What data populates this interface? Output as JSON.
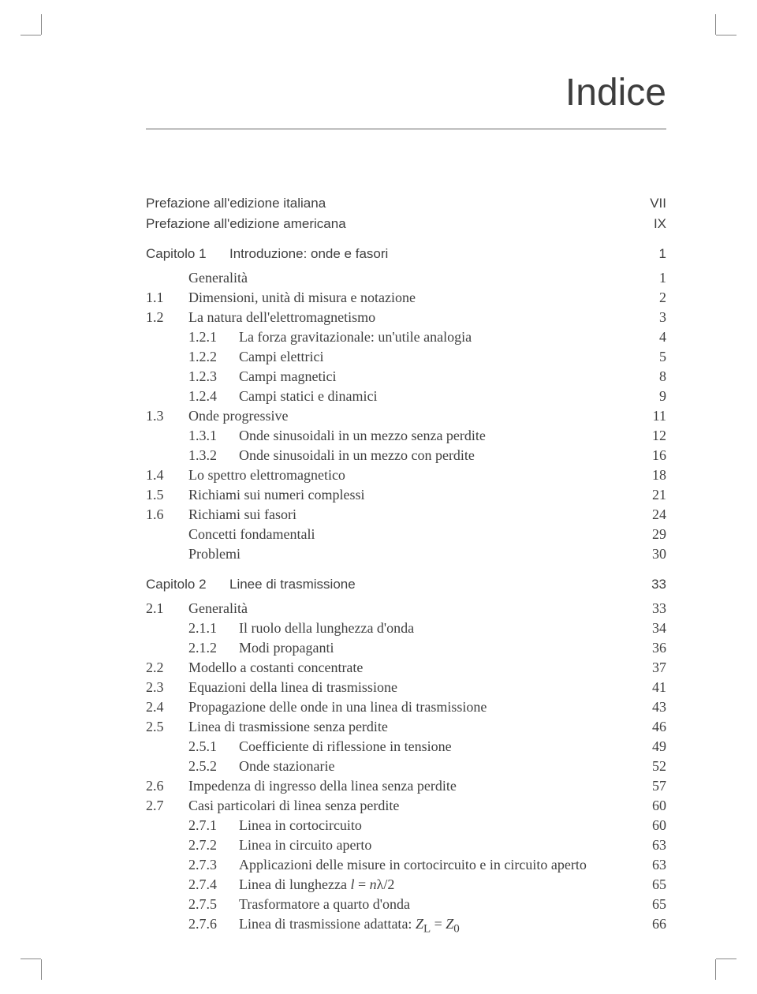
{
  "colors": {
    "text": "#3f3f3f",
    "rule": "#666666",
    "background": "#ffffff",
    "crop": "#888888"
  },
  "typography": {
    "body_family": "Times New Roman",
    "sans_family": "Helvetica Neue",
    "heading_size_pt": 48,
    "heading_weight": 300,
    "body_size_pt": 18,
    "sans_size_pt": 17
  },
  "heading": "Indice",
  "frontmatter": [
    {
      "title": "Prefazione all'edizione italiana",
      "page": "VII"
    },
    {
      "title": "Prefazione all'edizione americana",
      "page": "IX"
    }
  ],
  "chapters": [
    {
      "label": "Capitolo 1",
      "title": "Introduzione: onde e fasori",
      "page": "1",
      "entries": [
        {
          "level": 0,
          "num": "",
          "title": "Generalità",
          "page": "1"
        },
        {
          "level": 0,
          "num": "1.1",
          "title": "Dimensioni, unità di misura e notazione",
          "page": "2"
        },
        {
          "level": 0,
          "num": "1.2",
          "title": "La natura dell'elettromagnetismo",
          "page": "3"
        },
        {
          "level": 1,
          "num": "1.2.1",
          "title": "La forza gravitazionale: un'utile analogia",
          "page": "4"
        },
        {
          "level": 1,
          "num": "1.2.2",
          "title": "Campi elettrici",
          "page": "5"
        },
        {
          "level": 1,
          "num": "1.2.3",
          "title": "Campi magnetici",
          "page": "8"
        },
        {
          "level": 1,
          "num": "1.2.4",
          "title": "Campi statici e dinamici",
          "page": "9"
        },
        {
          "level": 0,
          "num": "1.3",
          "title": "Onde progressive",
          "page": "11"
        },
        {
          "level": 1,
          "num": "1.3.1",
          "title": "Onde sinusoidali in un mezzo senza perdite",
          "page": "12"
        },
        {
          "level": 1,
          "num": "1.3.2",
          "title": "Onde sinusoidali in un mezzo con perdite",
          "page": "16"
        },
        {
          "level": 0,
          "num": "1.4",
          "title": "Lo spettro elettromagnetico",
          "page": "18"
        },
        {
          "level": 0,
          "num": "1.5",
          "title": "Richiami sui numeri complessi",
          "page": "21"
        },
        {
          "level": 0,
          "num": "1.6",
          "title": "Richiami sui fasori",
          "page": "24"
        },
        {
          "level": 0,
          "num": "",
          "title": "Concetti fondamentali",
          "page": "29"
        },
        {
          "level": 0,
          "num": "",
          "title": "Problemi",
          "page": "30"
        }
      ]
    },
    {
      "label": "Capitolo 2",
      "title": "Linee di trasmissione",
      "page": "33",
      "entries": [
        {
          "level": 0,
          "num": "2.1",
          "title": "Generalità",
          "page": "33"
        },
        {
          "level": 1,
          "num": "2.1.1",
          "title": "Il ruolo della lunghezza d'onda",
          "page": "34"
        },
        {
          "level": 1,
          "num": "2.1.2",
          "title": "Modi propaganti",
          "page": "36"
        },
        {
          "level": 0,
          "num": "2.2",
          "title": "Modello a costanti concentrate",
          "page": "37"
        },
        {
          "level": 0,
          "num": "2.3",
          "title": "Equazioni della linea di trasmissione",
          "page": "41"
        },
        {
          "level": 0,
          "num": "2.4",
          "title": "Propagazione delle onde in una linea di trasmissione",
          "page": "43"
        },
        {
          "level": 0,
          "num": "2.5",
          "title": "Linea di trasmissione senza perdite",
          "page": "46"
        },
        {
          "level": 1,
          "num": "2.5.1",
          "title": "Coefficiente di riflessione in tensione",
          "page": "49"
        },
        {
          "level": 1,
          "num": "2.5.2",
          "title": "Onde stazionarie",
          "page": "52"
        },
        {
          "level": 0,
          "num": "2.6",
          "title": "Impedenza di ingresso della linea senza perdite",
          "page": "57"
        },
        {
          "level": 0,
          "num": "2.7",
          "title": "Casi particolari di linea senza perdite",
          "page": "60"
        },
        {
          "level": 1,
          "num": "2.7.1",
          "title": "Linea in cortocircuito",
          "page": "60"
        },
        {
          "level": 1,
          "num": "2.7.2",
          "title": "Linea in circuito aperto",
          "page": "63"
        },
        {
          "level": 1,
          "num": "2.7.3",
          "title": "Applicazioni delle misure in cortocircuito e in circuito aperto",
          "page": "63"
        },
        {
          "level": 1,
          "num": "2.7.4",
          "title_html": "Linea di lunghezza <span class='math'>l</span> = <span class='math'>n</span>λ/2",
          "title": "Linea di lunghezza l = nλ/2",
          "page": "65"
        },
        {
          "level": 1,
          "num": "2.7.5",
          "title": "Trasformatore a quarto d'onda",
          "page": "65"
        },
        {
          "level": 1,
          "num": "2.7.6",
          "title_html": "Linea di trasmissione adattata: <span class='math'>Z</span><sub>L</sub> = <span class='math'>Z</span><sub>0</sub>",
          "title": "Linea di trasmissione adattata: Z_L = Z_0",
          "page": "66"
        }
      ]
    }
  ]
}
